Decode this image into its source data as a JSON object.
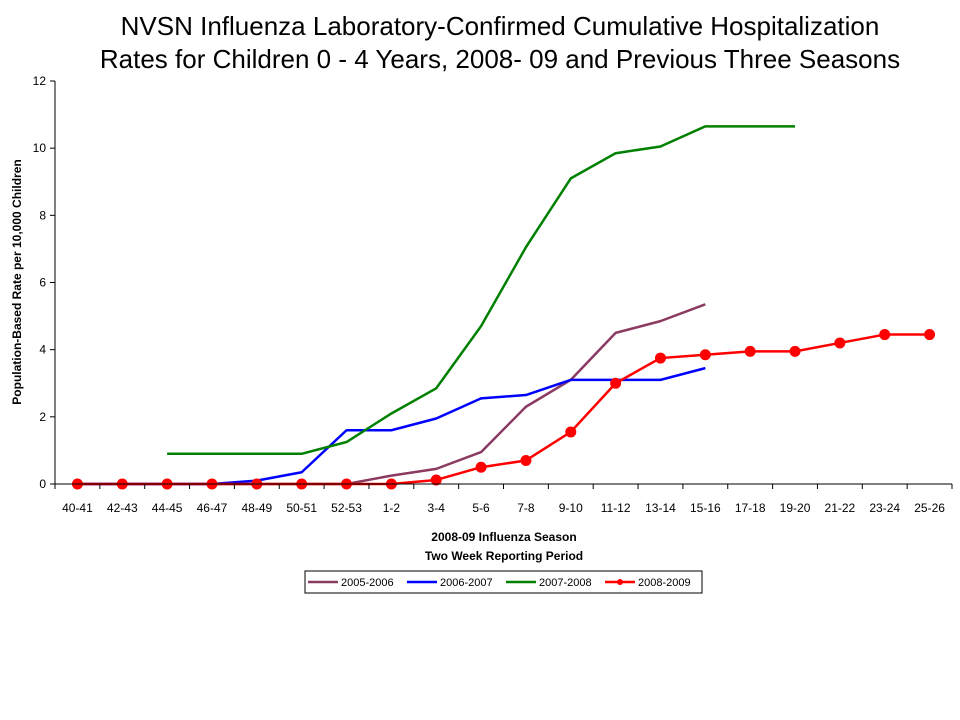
{
  "chart_data": {
    "type": "line",
    "title_lines": [
      "NVSN Influenza Laboratory-Confirmed Cumulative Hospitalization",
      "Rates for Children 0 - 4 Years, 2008- 09 and Previous Three Seasons"
    ],
    "xlabel_lines": [
      "2008-09 Influenza Season",
      "Two Week Reporting Period"
    ],
    "ylabel": "Population-Based Rate per 10,000 Children",
    "ylim": [
      0,
      12
    ],
    "yticks": [
      "0",
      "2",
      "4",
      "6",
      "8",
      "10",
      "12"
    ],
    "grid": false,
    "legend_position": "bottom",
    "categories": [
      "40-41",
      "42-43",
      "44-45",
      "46-47",
      "48-49",
      "50-51",
      "52-53",
      "1-2",
      "3-4",
      "5-6",
      "7-8",
      "9-10",
      "11-12",
      "13-14",
      "15-16",
      "17-18",
      "19-20",
      "21-22",
      "23-24",
      "25-26"
    ],
    "series": [
      {
        "name": "2005-2006",
        "color": "#8B3A62",
        "marker": "none",
        "values": [
          0,
          0,
          0,
          0,
          0,
          0,
          0,
          0.25,
          0.45,
          0.95,
          2.3,
          3.1,
          4.5,
          4.85,
          5.35,
          null,
          null,
          null,
          null,
          null
        ]
      },
      {
        "name": "2006-2007",
        "color": "#0000FF",
        "marker": "none",
        "values": [
          0,
          0,
          0,
          0,
          0.1,
          0.35,
          1.6,
          1.6,
          1.95,
          2.55,
          2.65,
          3.1,
          3.1,
          3.1,
          3.45,
          null,
          null,
          null,
          null,
          null
        ]
      },
      {
        "name": "2007-2008",
        "color": "#008000",
        "marker": "none",
        "values": [
          null,
          null,
          0.9,
          0.9,
          0.9,
          0.9,
          1.25,
          2.1,
          2.85,
          4.7,
          7.05,
          9.1,
          9.85,
          10.05,
          10.65,
          10.65,
          10.65,
          null,
          null,
          null
        ]
      },
      {
        "name": "2008-2009",
        "color": "#FF0000",
        "marker": "circle",
        "values": [
          0,
          0,
          0,
          0,
          0,
          0,
          0,
          0,
          0.12,
          0.5,
          0.7,
          1.55,
          3.0,
          3.75,
          3.85,
          3.95,
          3.95,
          4.2,
          4.45,
          4.45
        ]
      }
    ]
  }
}
